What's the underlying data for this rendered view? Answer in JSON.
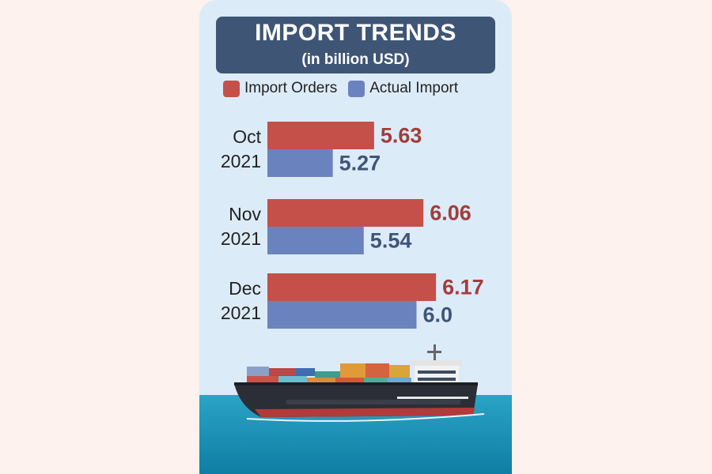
{
  "header": {
    "title": "IMPORT TRENDS",
    "subtitle": "(in billion USD)"
  },
  "legend": [
    {
      "label": "Import Orders",
      "color": "#c5504a"
    },
    {
      "label": "Actual Import",
      "color": "#6a83bf"
    }
  ],
  "chart_data": {
    "type": "bar",
    "orientation": "horizontal",
    "categories": [
      {
        "line1": "Oct",
        "line2": "2021"
      },
      {
        "line1": "Nov",
        "line2": "2021"
      },
      {
        "line1": "Dec",
        "line2": "2021"
      }
    ],
    "series": [
      {
        "name": "Import Orders",
        "color": "#c5504a",
        "label_color": "#a23d3a",
        "values": [
          5.63,
          6.06,
          6.17
        ],
        "labels": [
          "5.63",
          "6.06",
          "6.17"
        ]
      },
      {
        "name": "Actual Import",
        "color": "#6a83bf",
        "label_color": "#3f5479",
        "values": [
          5.27,
          5.54,
          6.0
        ],
        "labels": [
          "5.27",
          "5.54",
          "6.0"
        ]
      }
    ],
    "title": "IMPORT TRENDS",
    "subtitle": "(in billion USD)",
    "legend_position": "top",
    "grid": false
  }
}
